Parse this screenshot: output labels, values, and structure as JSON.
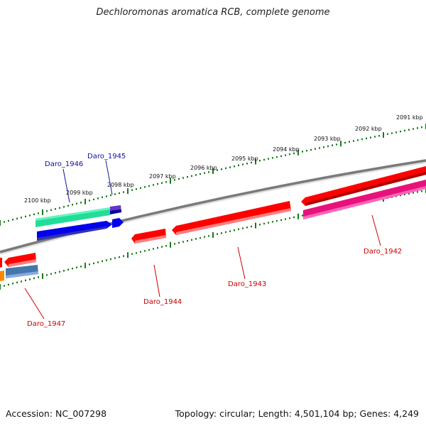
{
  "title": "Dechloromonas aromatica RCB, complete genome",
  "footer": {
    "accession": "Accession: NC_007298",
    "summary": "Topology: circular; Length: 4,501,104 bp; Genes: 4,249"
  },
  "kbp_labels": [
    "2091 kbp",
    "2092 kbp",
    "2093 kbp",
    "2094 kbp",
    "2095 kbp",
    "2096 kbp",
    "2097 kbp",
    "2098 kbp",
    "2099 kbp",
    "2100 kbp"
  ],
  "genes": [
    {
      "name": "Daro_1942",
      "strand": "-",
      "color": "#e8117a"
    },
    {
      "name": "Daro_1943",
      "strand": "-",
      "color": "#ff0000"
    },
    {
      "name": "Daro_1944",
      "strand": "-",
      "color": "#ff0000"
    },
    {
      "name": "Daro_1945",
      "strand": "+",
      "color": "#0000ee"
    },
    {
      "name": "Daro_1946",
      "strand": "+",
      "color": "#0000ee"
    },
    {
      "name": "Daro_1947",
      "strand": "-",
      "color": "#ff0000"
    }
  ],
  "colors": {
    "backbone": "#777777",
    "ticks": "#1a7a1a",
    "plus_label": "#1010a0",
    "minus_label": "#cc0000",
    "teal": "#22dd99",
    "purple": "#6633cc",
    "steelblue": "#4477aa",
    "orange": "#ff8800"
  }
}
